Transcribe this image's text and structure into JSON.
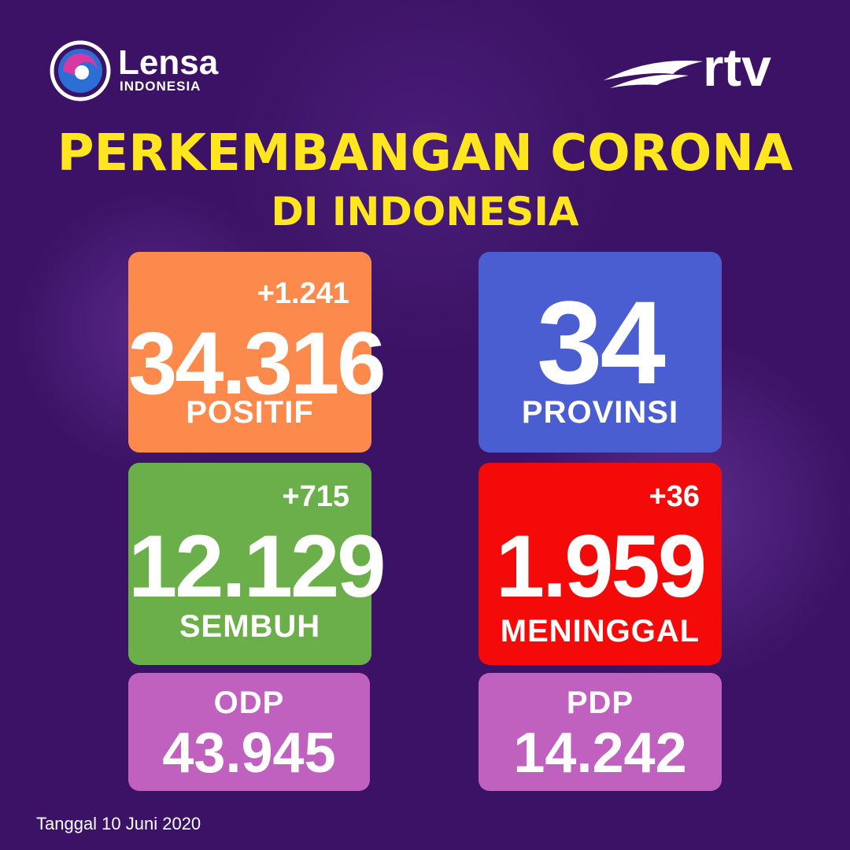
{
  "logos": {
    "left_name": "Lensa",
    "left_sub": "INDONESIA",
    "right_name": "rtv"
  },
  "header": {
    "title": "PERKEMBANGAN CORONA",
    "subtitle": "DI INDONESIA"
  },
  "cards": [
    {
      "delta": "+1.241",
      "value": "34.316",
      "label": "POSITIF"
    },
    {
      "value": "34",
      "label": "PROVINSI"
    },
    {
      "delta": "+715",
      "value": "12.129",
      "label": "SEMBUH"
    },
    {
      "delta": "+36",
      "value": "1.959",
      "label": "MENINGGAL"
    },
    {
      "label": "ODP",
      "value": "43.945"
    },
    {
      "label": "PDP",
      "value": "14.242"
    }
  ],
  "footer": {
    "date": "Tanggal 10 Juni 2020"
  }
}
